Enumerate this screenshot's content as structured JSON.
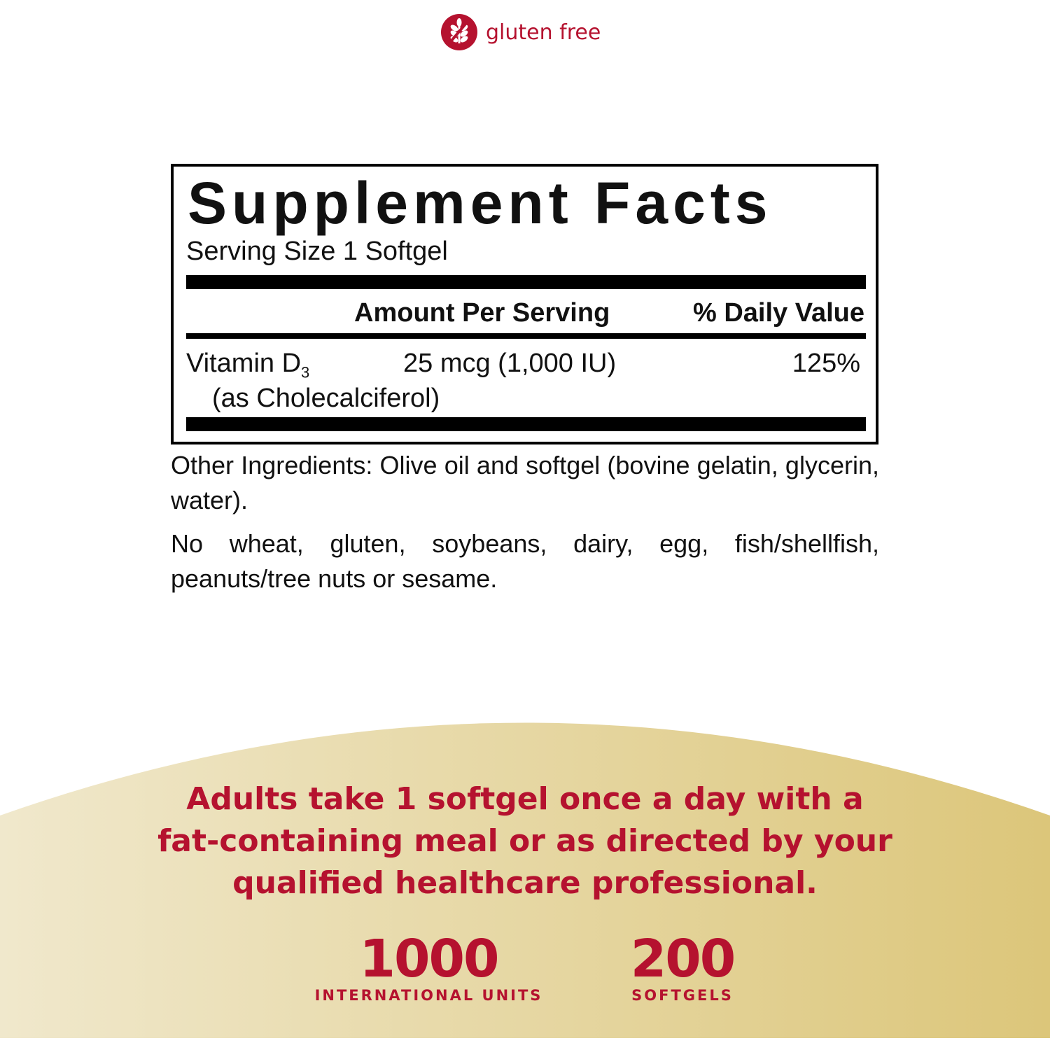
{
  "badge": {
    "icon": "gluten-free-wheat-icon",
    "label": "gluten free"
  },
  "facts": {
    "title": "Supplement Facts",
    "serving_size": "Serving Size 1 Softgel",
    "header_amount": "Amount Per Serving",
    "header_dv": "% Daily Value",
    "rows": [
      {
        "name": "Vitamin D",
        "subscript": "3",
        "source": "(as Cholecalciferol)",
        "amount": "25 mcg (1,000 IU)",
        "dv": "125%"
      }
    ]
  },
  "other_ingredients": "Other Ingredients: Olive oil and softgel (bovine gelatin, glycerin, water).",
  "allergens": "No wheat, gluten, soybeans, dairy, egg, fish/shellfish, peanuts/tree nuts or sesame.",
  "directions": {
    "line1": "Adults take 1 softgel once a day with a",
    "line2": "fat-containing meal or as directed by your",
    "line3": "qualified healthcare professional."
  },
  "stats": [
    {
      "value": "1000",
      "label": "INTERNATIONAL UNITS"
    },
    {
      "value": "200",
      "label": "SOFTGELS"
    }
  ],
  "colors": {
    "accent": "#b5122f",
    "gold_light": "#f0e8cc",
    "gold_dark": "#dcc67a"
  }
}
